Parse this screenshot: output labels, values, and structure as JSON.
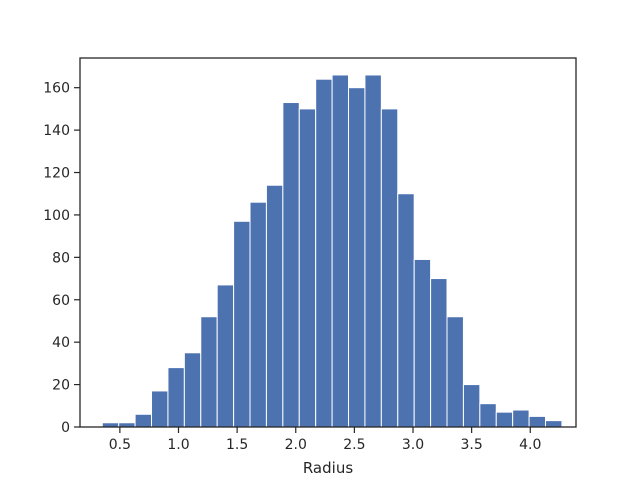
{
  "chart_data": {
    "type": "bar",
    "title": "",
    "xlabel": "Radius",
    "ylabel": "",
    "bin_edges": [
      0.35,
      0.49,
      0.63,
      0.77,
      0.91,
      1.05,
      1.19,
      1.33,
      1.47,
      1.61,
      1.75,
      1.89,
      2.03,
      2.17,
      2.31,
      2.45,
      2.59,
      2.73,
      2.87,
      3.01,
      3.15,
      3.29,
      3.43,
      3.57,
      3.71,
      3.85,
      3.99,
      4.13,
      4.27
    ],
    "values": [
      2,
      2,
      6,
      17,
      28,
      35,
      52,
      67,
      97,
      106,
      114,
      153,
      150,
      164,
      166,
      160,
      166,
      150,
      110,
      79,
      70,
      52,
      20,
      11,
      7,
      8,
      5,
      3
    ],
    "xlim": [
      0.16,
      4.39
    ],
    "ylim": [
      0,
      174
    ],
    "xticks": [
      0.5,
      1.0,
      1.5,
      2.0,
      2.5,
      3.0,
      3.5,
      4.0
    ],
    "xtick_labels": [
      "0.5",
      "1.0",
      "1.5",
      "2.0",
      "2.5",
      "3.0",
      "3.5",
      "4.0"
    ],
    "yticks": [
      0,
      20,
      40,
      60,
      80,
      100,
      120,
      140,
      160
    ],
    "ytick_labels": [
      "0",
      "20",
      "40",
      "60",
      "80",
      "100",
      "120",
      "140",
      "160"
    ],
    "grid": false,
    "colors": {
      "bar": "#4c72b0",
      "bar_edge": "#ffffff",
      "axes": "#262626",
      "text": "#262626"
    }
  }
}
